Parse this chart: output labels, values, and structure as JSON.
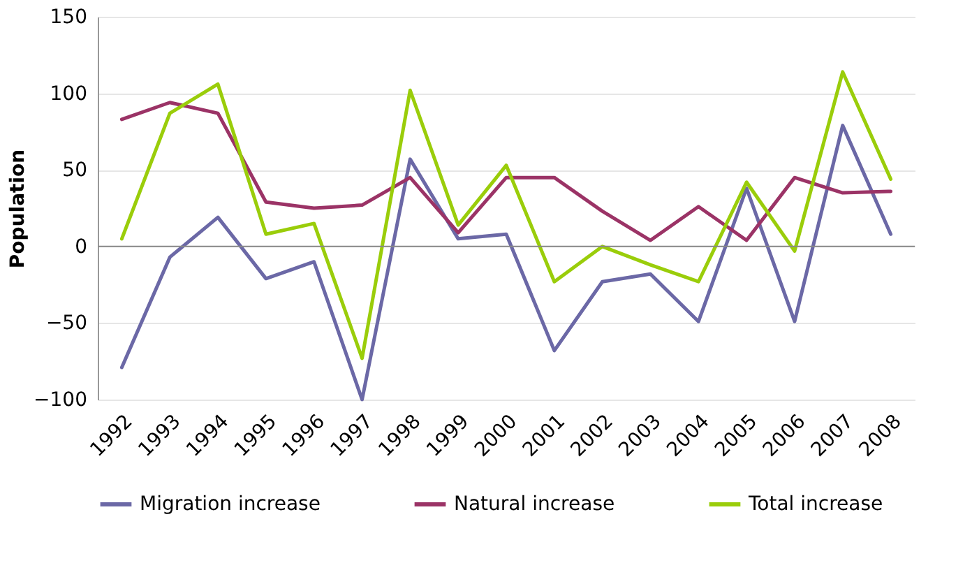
{
  "chart_data": {
    "type": "line",
    "ylabel": "Population",
    "categories": [
      "1992",
      "1993",
      "1994",
      "1995",
      "1996",
      "1997",
      "1998",
      "1999",
      "2000",
      "2001",
      "2002",
      "2003",
      "2004",
      "2005",
      "2006",
      "2007",
      "2008"
    ],
    "series": [
      {
        "name": "Migration increase",
        "color": "#6b68a6",
        "values": [
          -79,
          -7,
          19,
          -21,
          -10,
          -100,
          57,
          5,
          8,
          -68,
          -23,
          -18,
          -49,
          38,
          -49,
          79,
          8
        ]
      },
      {
        "name": "Natural increase",
        "color": "#9b3366",
        "values": [
          83,
          94,
          87,
          29,
          25,
          27,
          45,
          9,
          45,
          45,
          23,
          4,
          26,
          4,
          45,
          35,
          36
        ]
      },
      {
        "name": "Total increase",
        "color": "#9acd0a",
        "values": [
          5,
          87,
          106,
          8,
          15,
          -73,
          102,
          14,
          53,
          -23,
          0,
          -12,
          -23,
          42,
          -3,
          114,
          44
        ]
      }
    ],
    "ylim": [
      -100,
      150
    ],
    "yticks": [
      -100,
      -50,
      0,
      50,
      100,
      150
    ],
    "grid": "y",
    "legend": "bottom",
    "marker": "none",
    "line_style": "solid"
  }
}
